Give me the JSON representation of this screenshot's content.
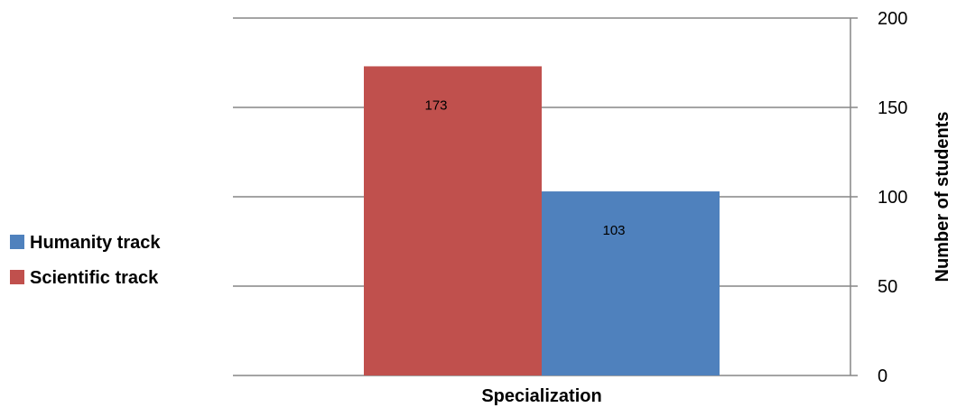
{
  "chart_data": {
    "type": "bar",
    "categories": [
      "Specialization"
    ],
    "series": [
      {
        "name": "Scientific track",
        "values": [
          173
        ],
        "color": "#C0504D"
      },
      {
        "name": "Humanity track",
        "values": [
          103
        ],
        "color": "#4F81BD"
      }
    ],
    "xlabel": "Specialization",
    "ylabel": "Number of students",
    "ylim": [
      0,
      200
    ],
    "yticks": [
      0,
      50,
      100,
      150,
      200
    ],
    "y_axis_side": "right",
    "grid": true,
    "legend_placement": "left",
    "legend_order": [
      "Humanity track",
      "Scientific track"
    ],
    "data_labels": [
      "173",
      "103"
    ]
  }
}
